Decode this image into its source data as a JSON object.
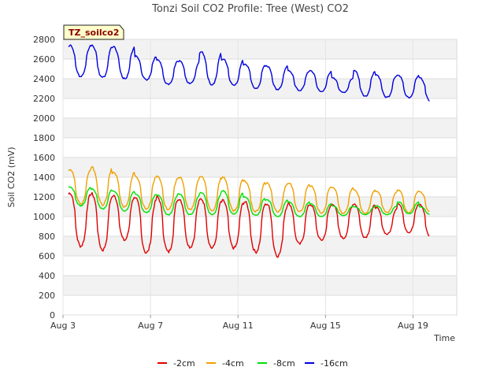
{
  "chart_data": {
    "type": "line",
    "title": "Tonzi Soil CO2 Profile: Tree (West) CO2",
    "badge": "TZ_soilco2",
    "xlabel": "Time",
    "ylabel": "Soil CO2 (mV)",
    "ylim": [
      0,
      2800
    ],
    "yticks": [
      0,
      200,
      400,
      600,
      800,
      1000,
      1200,
      1400,
      1600,
      1800,
      2000,
      2200,
      2400,
      2600,
      2800
    ],
    "xlim": [
      "2023-08-03",
      "2023-08-21"
    ],
    "xticks": [
      {
        "date": "2023-08-03",
        "label": "Aug 3"
      },
      {
        "date": "2023-08-07",
        "label": "Aug 7"
      },
      {
        "date": "2023-08-11",
        "label": "Aug 11"
      },
      {
        "date": "2023-08-15",
        "label": "Aug 15"
      },
      {
        "date": "2023-08-19",
        "label": "Aug 19"
      }
    ],
    "grid": true,
    "legend_position": "bottom",
    "series": [
      {
        "name": "-2cm",
        "color": "#e00000",
        "daily_min": [
          700,
          660,
          760,
          630,
          640,
          690,
          680,
          680,
          640,
          600,
          720,
          760,
          780,
          790,
          820,
          840,
          790
        ],
        "daily_max": [
          1240,
          1230,
          1210,
          1180,
          1200,
          1180,
          1180,
          1160,
          1150,
          1130,
          1130,
          1120,
          1130,
          1130,
          1090,
          1130,
          1120
        ]
      },
      {
        "name": "-4cm",
        "color": "#f0a000",
        "daily_min": [
          1130,
          1120,
          1100,
          1080,
          1070,
          1070,
          1060,
          1060,
          1050,
          1050,
          1050,
          1040,
          1030,
          1030,
          1040,
          1040,
          1040
        ],
        "daily_max": [
          1480,
          1500,
          1450,
          1410,
          1410,
          1400,
          1410,
          1400,
          1360,
          1340,
          1340,
          1310,
          1300,
          1270,
          1260,
          1270,
          1250
        ]
      },
      {
        "name": "-8cm",
        "color": "#00e000",
        "daily_min": [
          1110,
          1080,
          1060,
          1040,
          1020,
          1020,
          1020,
          1020,
          1010,
          1000,
          1000,
          1000,
          1010,
          1020,
          1020,
          1030,
          1020
        ],
        "daily_max": [
          1300,
          1280,
          1260,
          1230,
          1220,
          1230,
          1240,
          1260,
          1200,
          1170,
          1150,
          1130,
          1110,
          1100,
          1110,
          1150,
          1100
        ]
      },
      {
        "name": "-16cm",
        "color": "#0000e0",
        "daily_min": [
          2420,
          2410,
          2400,
          2390,
          2340,
          2350,
          2340,
          2330,
          2300,
          2290,
          2280,
          2270,
          2260,
          2220,
          2210,
          2210,
          2170
        ],
        "daily_max": [
          2740,
          2740,
          2720,
          2630,
          2590,
          2580,
          2670,
          2600,
          2550,
          2530,
          2480,
          2480,
          2410,
          2480,
          2440,
          2440,
          2410
        ]
      }
    ]
  }
}
